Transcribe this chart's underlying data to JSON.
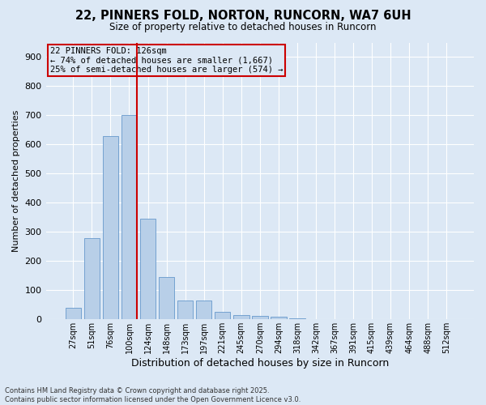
{
  "title_line1": "22, PINNERS FOLD, NORTON, RUNCORN, WA7 6UH",
  "title_line2": "Size of property relative to detached houses in Runcorn",
  "xlabel": "Distribution of detached houses by size in Runcorn",
  "ylabel": "Number of detached properties",
  "categories": [
    "27sqm",
    "51sqm",
    "76sqm",
    "100sqm",
    "124sqm",
    "148sqm",
    "173sqm",
    "197sqm",
    "221sqm",
    "245sqm",
    "270sqm",
    "294sqm",
    "318sqm",
    "342sqm",
    "367sqm",
    "391sqm",
    "415sqm",
    "439sqm",
    "464sqm",
    "488sqm",
    "512sqm"
  ],
  "values": [
    40,
    280,
    630,
    700,
    345,
    145,
    65,
    65,
    27,
    15,
    12,
    8,
    4,
    0,
    0,
    1,
    0,
    0,
    0,
    0,
    0
  ],
  "bar_color": "#b8cfe8",
  "bar_edge_color": "#6699cc",
  "red_line_after_index": 3,
  "highlight_line_color": "#cc0000",
  "ylim": [
    0,
    950
  ],
  "yticks": [
    0,
    100,
    200,
    300,
    400,
    500,
    600,
    700,
    800,
    900
  ],
  "annotation_box_text": "22 PINNERS FOLD: 126sqm\n← 74% of detached houses are smaller (1,667)\n25% of semi-detached houses are larger (574) →",
  "annotation_box_color": "#cc0000",
  "background_color": "#dce8f5",
  "grid_color": "#ffffff",
  "footer_line1": "Contains HM Land Registry data © Crown copyright and database right 2025.",
  "footer_line2": "Contains public sector information licensed under the Open Government Licence v3.0."
}
